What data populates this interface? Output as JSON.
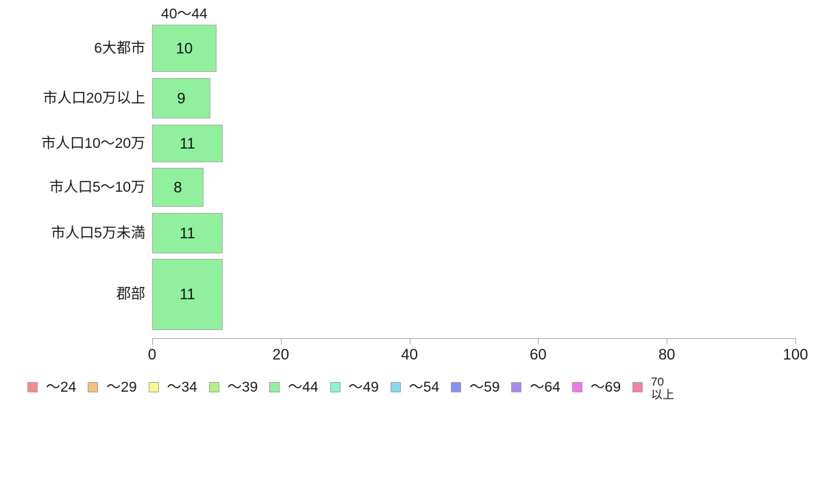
{
  "chart_data": {
    "type": "bar",
    "orientation": "horizontal",
    "title": "40〜44",
    "categories": [
      "6大都市",
      "市人口20万以上",
      "市人口10〜20万",
      "市人口5〜10万",
      "市人口5万未満",
      "郡部"
    ],
    "values": [
      10,
      9,
      11,
      8,
      11,
      11
    ],
    "value_labels": [
      "10",
      "9",
      "11",
      "8",
      "11",
      "11"
    ],
    "bar_color": "#90F09E",
    "bar_border_color": "#ABABAB",
    "xlim": [
      0,
      100
    ],
    "x_ticks": [
      0,
      20,
      40,
      60,
      80,
      100
    ],
    "x_tick_labels": [
      "0",
      "20",
      "40",
      "60",
      "80",
      "100"
    ],
    "grid": false,
    "axis_color": "#A6A6A6",
    "legend_position": "bottom",
    "legend": [
      {
        "label": "〜24",
        "color": "#F48B8F"
      },
      {
        "label": "〜29",
        "color": "#F4C07F"
      },
      {
        "label": "〜34",
        "color": "#F8F88E"
      },
      {
        "label": "〜39",
        "color": "#B2F283"
      },
      {
        "label": "〜44",
        "color": "#90F09E"
      },
      {
        "label": "〜49",
        "color": "#8DF2CE"
      },
      {
        "label": "〜54",
        "color": "#8BD7F2"
      },
      {
        "label": "〜59",
        "color": "#8792F0"
      },
      {
        "label": "〜64",
        "color": "#A989F0"
      },
      {
        "label": "〜69",
        "color": "#F276EB"
      },
      {
        "label": "70以上",
        "color": "#F480AE",
        "label_lines": [
          "70",
          "以上"
        ]
      }
    ]
  }
}
